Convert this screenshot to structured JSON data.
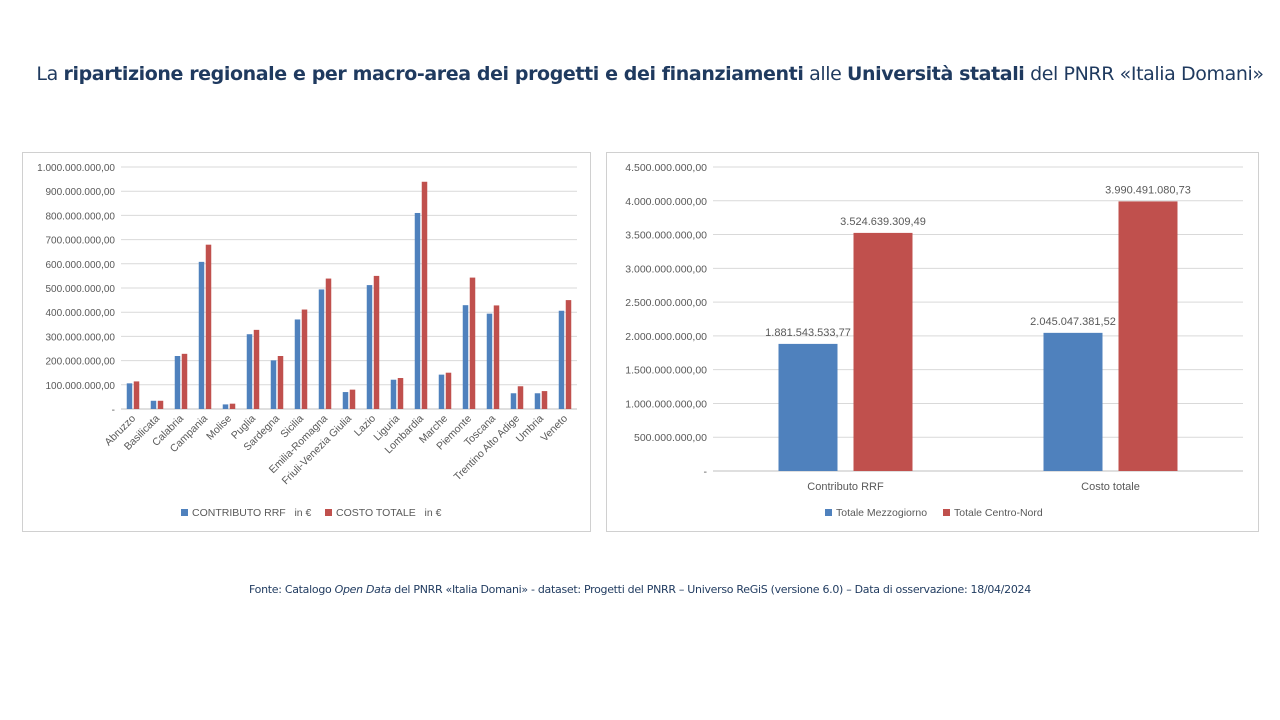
{
  "title": {
    "segments": [
      {
        "text": "La ",
        "bold": false
      },
      {
        "text": "ripartizione regionale e per macro-area dei progetti e dei finanziamenti",
        "bold": true
      },
      {
        "text": " alle ",
        "bold": false
      },
      {
        "text": "Università statali",
        "bold": true
      },
      {
        "text": " del PNRR «Italia Domani»",
        "bold": false
      }
    ]
  },
  "footer": {
    "prefix": "Fonte: Catalogo ",
    "italic": "Open Data",
    "suffix": " del PNRR «Italia Domani» - dataset: Progetti del PNRR – Universo ReGiS (versione 6.0)  – Data di osservazione: 18/04/2024"
  },
  "colors": {
    "blue": "#4f81bd",
    "red": "#c0504d",
    "title": "#1f3a5f",
    "grid": "#d9d9d9"
  },
  "chart_data": [
    {
      "type": "bar",
      "categories": [
        "Abruzzo",
        "Basilicata",
        "Calabria",
        "Campania",
        "Molise",
        "Puglia",
        "Sardegna",
        "Sicilia",
        "Emilia-Romagna",
        "Friuli-Venezia Giulia",
        "Lazio",
        "Liguria",
        "Lombardia",
        "Marche",
        "Piemonte",
        "Toscana",
        "Trentino Alto Adige",
        "Umbria",
        "Veneto"
      ],
      "series": [
        {
          "name": "CONTRIBUTO RRF   in €",
          "color": "#4f81bd",
          "values": [
            106000000,
            34000000,
            219000000,
            608000000,
            19000000,
            309000000,
            201000000,
            370000000,
            494000000,
            70000000,
            512000000,
            121000000,
            810000000,
            142000000,
            429000000,
            394000000,
            65000000,
            65000000,
            406000000
          ]
        },
        {
          "name": "COSTO TOTALE   in €",
          "color": "#c0504d",
          "values": [
            114000000,
            34000000,
            228000000,
            679000000,
            22000000,
            327000000,
            219000000,
            411000000,
            539000000,
            80000000,
            550000000,
            128000000,
            939000000,
            150000000,
            543000000,
            428000000,
            94000000,
            74000000,
            450000000
          ]
        }
      ],
      "ylim": [
        0,
        1000000000
      ],
      "yticks": [
        0,
        100000000,
        200000000,
        300000000,
        400000000,
        500000000,
        600000000,
        700000000,
        800000000,
        900000000,
        1000000000
      ],
      "ytick_labels": [
        "-",
        "100.000.000,00",
        "200.000.000,00",
        "300.000.000,00",
        "400.000.000,00",
        "500.000.000,00",
        "600.000.000,00",
        "700.000.000,00",
        "800.000.000,00",
        "900.000.000,00",
        "1.000.000.000,00"
      ],
      "grid": true,
      "legend": "bottom"
    },
    {
      "type": "bar",
      "categories": [
        "Contributo RRF",
        "Costo totale"
      ],
      "series": [
        {
          "name": "Totale Mezzogiorno",
          "color": "#4f81bd",
          "values": [
            1881543533.77,
            2045047381.52
          ],
          "labels": [
            "1.881.543.533,77",
            "2.045.047.381,52"
          ]
        },
        {
          "name": "Totale Centro-Nord",
          "color": "#c0504d",
          "values": [
            3524639309.49,
            3990491080.73
          ],
          "labels": [
            "3.524.639.309,49",
            "3.990.491.080,73"
          ]
        }
      ],
      "ylim": [
        0,
        4500000000
      ],
      "yticks": [
        0,
        500000000,
        1000000000,
        1500000000,
        2000000000,
        2500000000,
        3000000000,
        3500000000,
        4000000000,
        4500000000
      ],
      "ytick_labels": [
        "-",
        "500.000.000,00",
        "1.000.000.000,00",
        "1.500.000.000,00",
        "2.000.000.000,00",
        "2.500.000.000,00",
        "3.000.000.000,00",
        "3.500.000.000,00",
        "4.000.000.000,00",
        "4.500.000.000,00"
      ],
      "grid": true,
      "legend": "bottom"
    }
  ]
}
